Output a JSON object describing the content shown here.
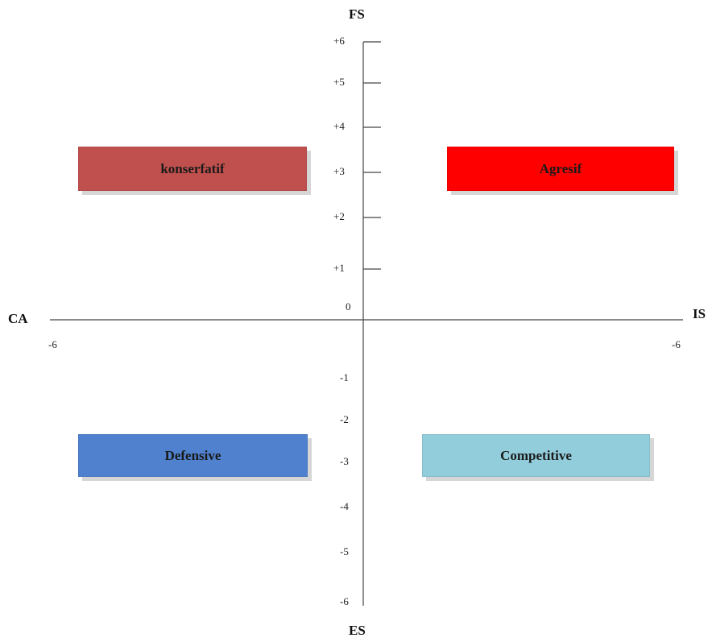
{
  "axes": {
    "top": "FS",
    "bottom": "ES",
    "left": "CA",
    "right": "IS",
    "x_left_end": "-6",
    "x_right_end": "-6",
    "origin": "0",
    "y_ticks": [
      {
        "label": "+6",
        "value": 6
      },
      {
        "label": "+5",
        "value": 5
      },
      {
        "label": "+4",
        "value": 4
      },
      {
        "label": "+3",
        "value": 3
      },
      {
        "label": "+2",
        "value": 2
      },
      {
        "label": "+1",
        "value": 1
      },
      {
        "label": "-1",
        "value": -1
      },
      {
        "label": "-2",
        "value": -2
      },
      {
        "label": "-3",
        "value": -3
      },
      {
        "label": "-4",
        "value": -4
      },
      {
        "label": "-5",
        "value": -5
      },
      {
        "label": "-6",
        "value": -6
      }
    ]
  },
  "quadrants": {
    "top_left": {
      "label": "konserfatif",
      "color": "#c0504d"
    },
    "top_right": {
      "label": "Agresif",
      "color": "#ff0000"
    },
    "bottom_left": {
      "label": "Defensive",
      "color": "#4f81cf"
    },
    "bottom_right": {
      "label": "Competitive",
      "color": "#92cddc"
    }
  }
}
